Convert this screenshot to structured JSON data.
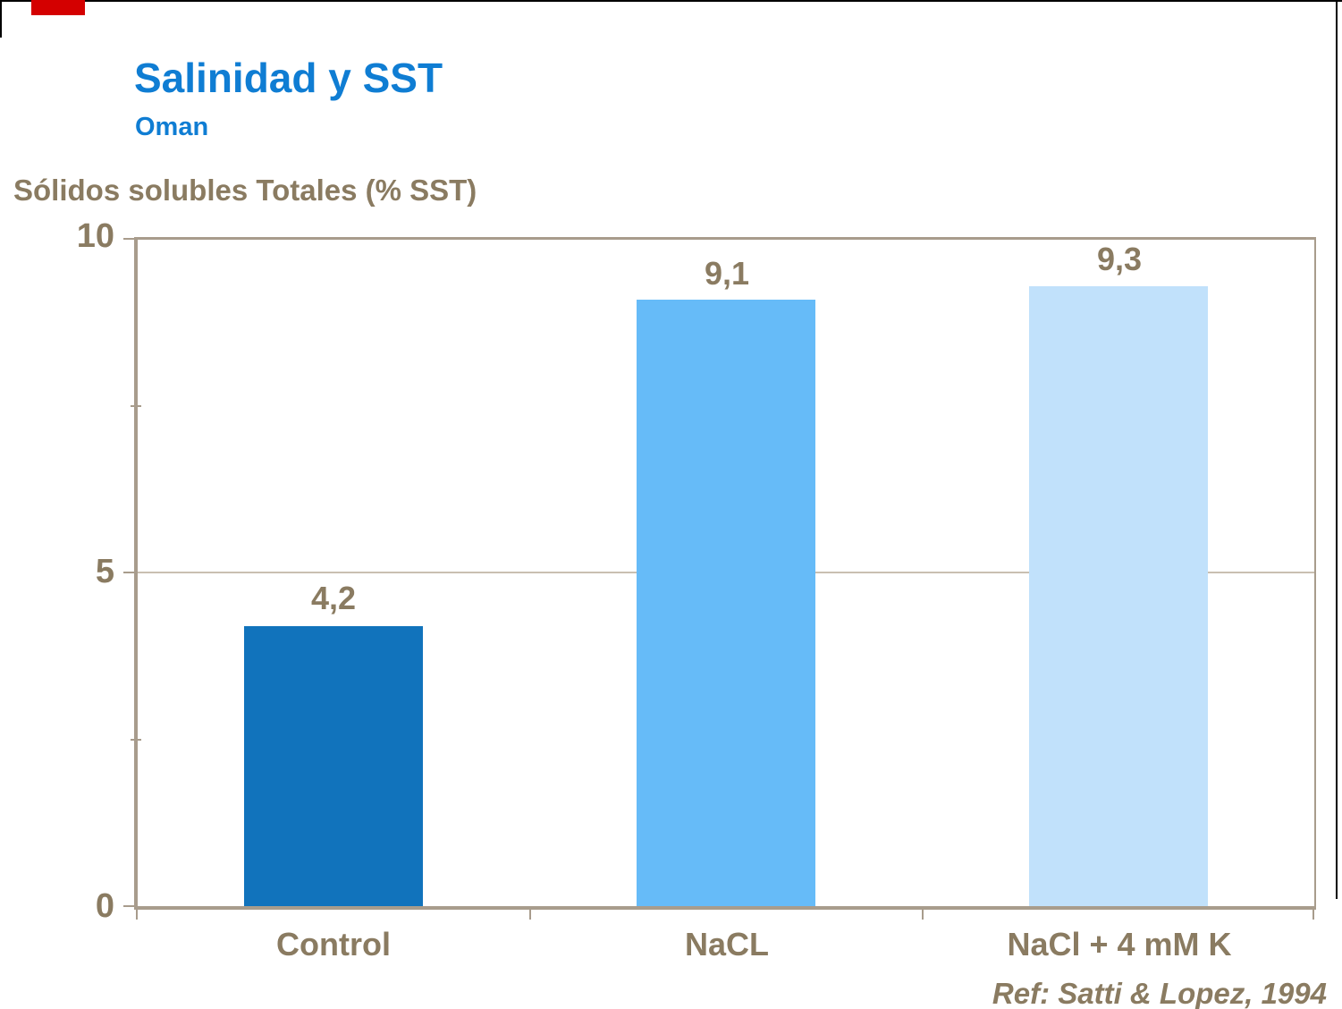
{
  "slide": {
    "title": "Salinidad y SST",
    "subtitle": "Oman",
    "axis_title": "Sólidos solubles Totales (% SST)",
    "reference": "Ref: Satti & Lopez, 1994"
  },
  "colors": {
    "title_blue": "#0F7DD3",
    "label_brown": "#8A7B61",
    "axis_line": "#A89C8C",
    "gridline": "#C9BFB1",
    "accent_red": "#D40000",
    "border_black": "#000000",
    "bars": [
      "#1173BC",
      "#66BBF8",
      "#C1E1FB"
    ]
  },
  "chart_data": {
    "type": "bar",
    "title": "Salinidad y SST",
    "subtitle": "Oman",
    "ylabel": "Sólidos solubles Totales (% SST)",
    "xlabel": "",
    "categories": [
      "Control",
      "NaCL",
      "NaCl + 4 mM K"
    ],
    "values": [
      4.2,
      9.1,
      9.3
    ],
    "value_labels": [
      "4,2",
      "9,1",
      "9,3"
    ],
    "ylim": [
      0,
      10
    ],
    "yticks": [
      0,
      5,
      10
    ],
    "ytick_labels": [
      "0",
      "5",
      "10"
    ],
    "minor_yticks": [
      2.5,
      7.5
    ],
    "gridlines_y": [
      5
    ],
    "bar_colors": [
      "#1173BC",
      "#66BBF8",
      "#C1E1FB"
    ],
    "legend": "none",
    "annotation": "Ref: Satti & Lopez, 1994"
  }
}
